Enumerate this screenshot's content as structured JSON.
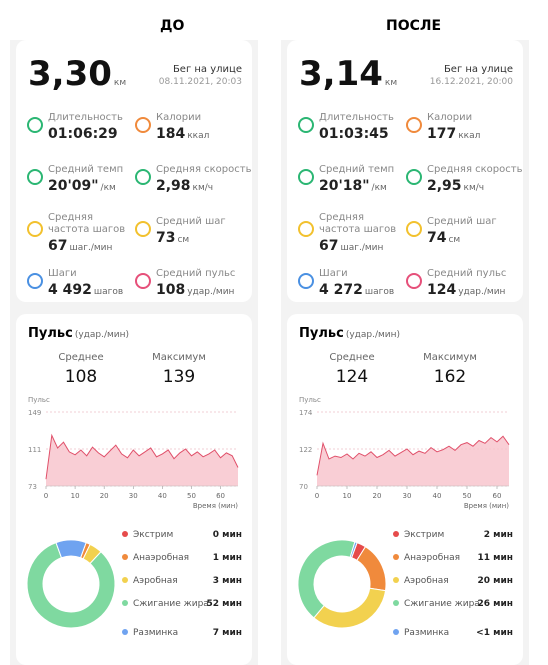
{
  "panels": [
    {
      "heading": "ДО",
      "distance": "3,30",
      "distance_unit": "км",
      "activity": "Бег на улице",
      "datetime": "08.11.2021, 20:03",
      "stats": [
        {
          "label": "Длительность",
          "value": "01:06:29"
        },
        {
          "label": "Калории",
          "value": "184",
          "unit": "ккал"
        },
        {
          "label": "Средний темп",
          "value": "20'09\"",
          "unit": "/км"
        },
        {
          "label": "Средняя скорость",
          "value": "2,98",
          "unit": "км/ч"
        },
        {
          "label": "Средняя частота шагов",
          "value": "67",
          "unit": "шаг./мин"
        },
        {
          "label": "Средний шаг",
          "value": "73",
          "unit": "см"
        },
        {
          "label": "Шаги",
          "value": "4 492",
          "unit": "шагов"
        },
        {
          "label": "Средний пульс",
          "value": "108",
          "unit": "удар./мин"
        }
      ],
      "pulse": {
        "title": "Пульс",
        "unit": "(удар./мин)",
        "avg_label": "Среднее",
        "avg": "108",
        "max_label": "Максимум",
        "max": "139",
        "chart": {
          "type": "area",
          "y_label": "Пульс",
          "x_label": "Время (мин)",
          "color": "#e0506a",
          "xlim": [
            0,
            66
          ],
          "xticks": [
            0,
            10,
            20,
            30,
            40,
            50,
            60
          ],
          "ylim": [
            73,
            149
          ],
          "yticks": [
            73,
            111,
            149
          ],
          "grid": true,
          "x": [
            0,
            2,
            4,
            6,
            8,
            10,
            12,
            14,
            16,
            18,
            20,
            22,
            24,
            26,
            28,
            30,
            32,
            34,
            36,
            38,
            40,
            42,
            44,
            46,
            48,
            50,
            52,
            54,
            56,
            58,
            60,
            62,
            64,
            66
          ],
          "values": [
            80,
            125,
            112,
            118,
            108,
            105,
            110,
            104,
            113,
            107,
            103,
            109,
            115,
            106,
            102,
            110,
            104,
            108,
            112,
            103,
            106,
            110,
            101,
            107,
            111,
            104,
            108,
            103,
            106,
            110,
            102,
            107,
            104,
            92
          ]
        },
        "zones": {
          "type": "pie",
          "categories": [
            "Экстрим",
            "Анаэробная",
            "Аэробная",
            "Сжигание жира",
            "Разминка"
          ],
          "colors": [
            "#e64b4b",
            "#f08a3c",
            "#f2d14f",
            "#7fd9a0",
            "#6fa3f0"
          ],
          "values": [
            0,
            1,
            3,
            52,
            7
          ],
          "value_labels": [
            "0 мин",
            "1 мин",
            "3 мин",
            "52 мин",
            "7 мин"
          ]
        }
      }
    },
    {
      "heading": "ПОСЛЕ",
      "distance": "3,14",
      "distance_unit": "км",
      "activity": "Бег на улице",
      "datetime": "16.12.2021, 20:00",
      "stats": [
        {
          "label": "Длительность",
          "value": "01:03:45"
        },
        {
          "label": "Калории",
          "value": "177",
          "unit": "ккал"
        },
        {
          "label": "Средний темп",
          "value": "20'18\"",
          "unit": "/км"
        },
        {
          "label": "Средняя скорость",
          "value": "2,95",
          "unit": "км/ч"
        },
        {
          "label": "Средняя частота шагов",
          "value": "67",
          "unit": "шаг./мин"
        },
        {
          "label": "Средний шаг",
          "value": "74",
          "unit": "см"
        },
        {
          "label": "Шаги",
          "value": "4 272",
          "unit": "шагов"
        },
        {
          "label": "Средний пульс",
          "value": "124",
          "unit": "удар./мин"
        }
      ],
      "pulse": {
        "title": "Пульс",
        "unit": "(удар./мин)",
        "avg_label": "Среднее",
        "avg": "124",
        "max_label": "Максимум",
        "max": "162",
        "chart": {
          "type": "area",
          "y_label": "Пульс",
          "x_label": "Время (мин)",
          "color": "#e0506a",
          "xlim": [
            0,
            64
          ],
          "xticks": [
            0,
            10,
            20,
            30,
            40,
            50,
            60
          ],
          "ylim": [
            70,
            174
          ],
          "yticks": [
            70,
            122,
            174
          ],
          "grid": true,
          "x": [
            0,
            2,
            4,
            6,
            8,
            10,
            12,
            14,
            16,
            18,
            20,
            22,
            24,
            26,
            28,
            30,
            32,
            34,
            36,
            38,
            40,
            42,
            44,
            46,
            48,
            50,
            52,
            54,
            56,
            58,
            60,
            62,
            64
          ],
          "values": [
            85,
            130,
            108,
            112,
            110,
            115,
            108,
            116,
            112,
            118,
            110,
            114,
            120,
            112,
            117,
            122,
            114,
            119,
            116,
            124,
            118,
            121,
            126,
            120,
            128,
            131,
            126,
            134,
            130,
            138,
            132,
            140,
            128
          ]
        },
        "zones": {
          "type": "pie",
          "categories": [
            "Экстрим",
            "Анаэробная",
            "Аэробная",
            "Сжигание жира",
            "Разминка"
          ],
          "colors": [
            "#e64b4b",
            "#f08a3c",
            "#f2d14f",
            "#7fd9a0",
            "#6fa3f0"
          ],
          "values": [
            2,
            11,
            20,
            26,
            0.5
          ],
          "value_labels": [
            "2 мин",
            "11 мин",
            "20 мин",
            "26 мин",
            "<1 мин"
          ]
        }
      }
    }
  ]
}
